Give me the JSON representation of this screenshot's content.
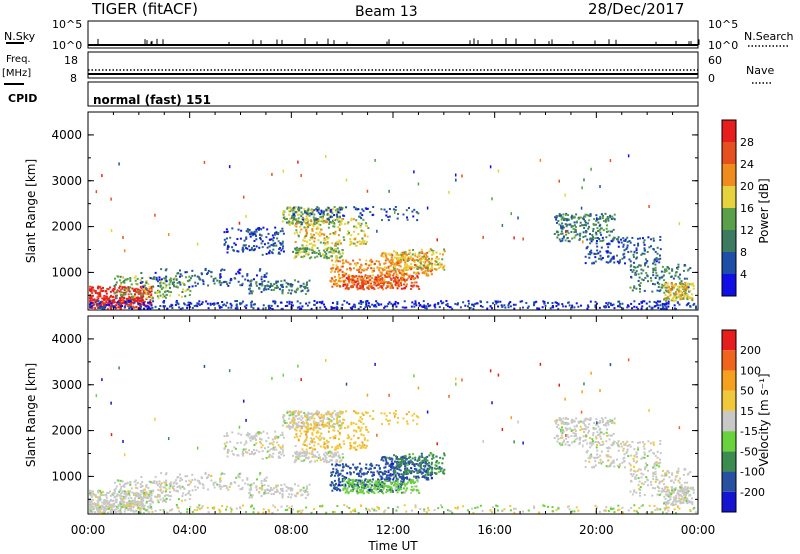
{
  "header": {
    "title": "TIGER (fitACF)",
    "beam": "Beam 13",
    "date": "28/Dec/2017"
  },
  "nsky_panel": {
    "label": "N.Sky",
    "left_ticks": [
      "10^5",
      "10^0"
    ],
    "right_ticks": [
      "10^5",
      "10^0"
    ],
    "right_label": "N.Search"
  },
  "freq_panel": {
    "label_line1": "Freq.",
    "label_line2": "[MHz]",
    "left_ticks": [
      "18",
      "8"
    ],
    "right_ticks": [
      "60",
      "0"
    ],
    "right_label": "Nave"
  },
  "cpid_panel": {
    "label": "CPID",
    "text": "normal (fast) 151"
  },
  "x_axis": {
    "label": "Time UT",
    "ticks": [
      "00:00",
      "04:00",
      "08:00",
      "12:00",
      "16:00",
      "20:00",
      "00:00"
    ]
  },
  "colors": {
    "power_scale": [
      "#1010e6",
      "#1e4ea8",
      "#3c7b60",
      "#5aa04a",
      "#e6d23c",
      "#f08c1e",
      "#e6501e",
      "#e61e1e"
    ],
    "velocity_scale": [
      "#e61e1e",
      "#f0641e",
      "#f5a01e",
      "#f0c83c",
      "#c8c8c8",
      "#6ad23c",
      "#3c8c50",
      "#2850a0",
      "#1414d2"
    ]
  },
  "chart_data": [
    {
      "type": "heatmap",
      "title": "",
      "xlabel": "Time UT",
      "ylabel": "Slant Range [km]",
      "xlim": [
        0,
        24
      ],
      "ylim": [
        180,
        4500
      ],
      "y_ticks": [
        "1000",
        "2000",
        "3000",
        "4000"
      ],
      "colorbar": {
        "label": "Power [dB]",
        "ticks": [
          "4",
          "8",
          "12",
          "16",
          "20",
          "24",
          "28"
        ]
      }
    },
    {
      "type": "heatmap",
      "title": "",
      "xlabel": "Time UT",
      "ylabel": "Slant Range [km]",
      "xlim": [
        0,
        24
      ],
      "ylim": [
        180,
        4500
      ],
      "y_ticks": [
        "1000",
        "2000",
        "3000",
        "4000"
      ],
      "colorbar": {
        "label": "Velocity [m s⁻¹]",
        "ticks": [
          "200",
          "100",
          "50",
          "15",
          "-15",
          "-50",
          "-100",
          "-200"
        ]
      }
    }
  ]
}
